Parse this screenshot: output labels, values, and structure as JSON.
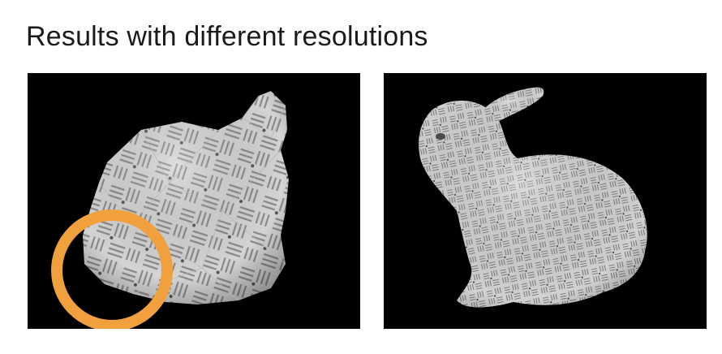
{
  "slide": {
    "title": "Results with different resolutions"
  },
  "panels": [
    {
      "id": "low-resolution-bunny",
      "highlight": "circle"
    },
    {
      "id": "high-resolution-bunny",
      "highlight": "none"
    }
  ],
  "colors": {
    "background": "#ffffff",
    "title_text": "#1a1a1a",
    "panel_background": "#000000",
    "highlight_ring": "#f0a03c",
    "mesh_surface": "#cfcfcf"
  }
}
